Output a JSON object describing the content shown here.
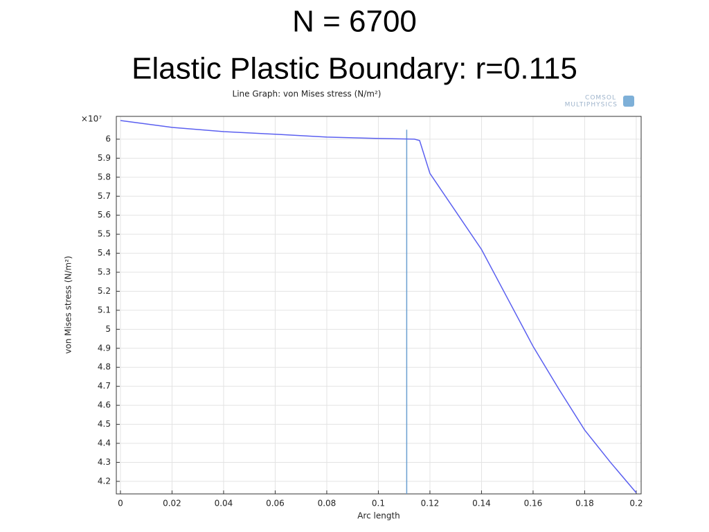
{
  "slide_title": [
    "N = 6700",
    "Elastic Plastic Boundary: r=0.115"
  ],
  "logo": [
    "COMSOL",
    "MULTIPHYSICS"
  ],
  "chart_data": {
    "type": "line",
    "title": "Line Graph: von Mises stress (N/m²)",
    "x_label": "Arc length",
    "y_label": "von Mises stress (N/m²)",
    "y_multiplier": "×10⁷",
    "color": "#5a5ff0",
    "x": [
      0,
      0.02,
      0.04,
      0.06,
      0.08,
      0.1,
      0.114,
      0.116,
      0.12,
      0.13,
      0.14,
      0.15,
      0.16,
      0.17,
      0.18,
      0.19,
      0.2
    ],
    "values": [
      6.098,
      6.062,
      6.04,
      6.026,
      6.011,
      6.004,
      6.0,
      5.993,
      5.82,
      5.62,
      5.42,
      5.165,
      4.91,
      4.685,
      4.47,
      4.3,
      4.14
    ],
    "vline_x": 0.111,
    "vline_top": 6.05,
    "vline_color": "#6a9fd0",
    "xlim": [
      -0.0016,
      0.2019
    ],
    "ylim": [
      4.134,
      6.12
    ],
    "xticks": [
      0,
      0.02,
      0.04,
      0.06,
      0.08,
      0.1,
      0.12,
      0.14,
      0.16,
      0.18,
      0.2
    ],
    "yticks": [
      4.2,
      4.3,
      4.4,
      4.5,
      4.6,
      4.7,
      4.8,
      4.9,
      5,
      5.1,
      5.2,
      5.3,
      5.4,
      5.5,
      5.6,
      5.7,
      5.8,
      5.9,
      6
    ],
    "grid": true
  }
}
